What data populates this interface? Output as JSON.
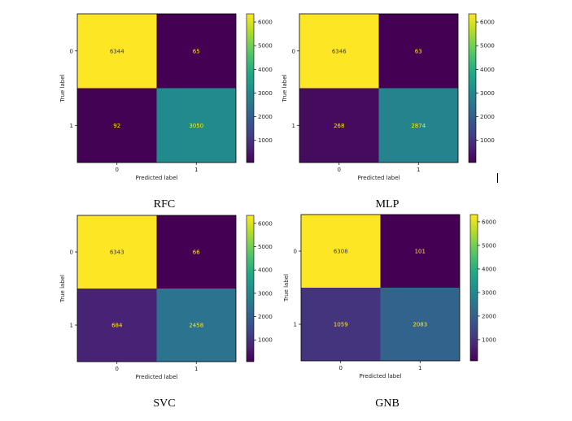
{
  "chart_data": [
    {
      "type": "heatmap",
      "caption": "RFC",
      "xlabel": "Predicted label",
      "ylabel": "True label",
      "x_ticks": [
        "0",
        "1"
      ],
      "y_ticks": [
        "0",
        "1"
      ],
      "matrix": [
        [
          6344,
          65
        ],
        [
          92,
          3050
        ]
      ],
      "colorbar": {
        "colormap": "viridis",
        "range": [
          65,
          6344
        ],
        "ticks": [
          1000,
          2000,
          3000,
          4000,
          5000,
          6000
        ]
      }
    },
    {
      "type": "heatmap",
      "caption": "MLP",
      "xlabel": "Predicted label",
      "ylabel": "True label",
      "x_ticks": [
        "0",
        "1"
      ],
      "y_ticks": [
        "0",
        "1"
      ],
      "matrix": [
        [
          6346,
          63
        ],
        [
          268,
          2874
        ]
      ],
      "colorbar": {
        "colormap": "viridis",
        "range": [
          63,
          6346
        ],
        "ticks": [
          1000,
          2000,
          3000,
          4000,
          5000,
          6000
        ]
      }
    },
    {
      "type": "heatmap",
      "caption": "SVC",
      "xlabel": "Predicted label",
      "ylabel": "True label",
      "x_ticks": [
        "0",
        "1"
      ],
      "y_ticks": [
        "0",
        "1"
      ],
      "matrix": [
        [
          6343,
          66
        ],
        [
          684,
          2458
        ]
      ],
      "colorbar": {
        "colormap": "viridis",
        "range": [
          66,
          6343
        ],
        "ticks": [
          1000,
          2000,
          3000,
          4000,
          5000,
          6000
        ]
      }
    },
    {
      "type": "heatmap",
      "caption": "GNB",
      "xlabel": "Predicted label",
      "ylabel": "True label",
      "x_ticks": [
        "0",
        "1"
      ],
      "y_ticks": [
        "0",
        "1"
      ],
      "matrix": [
        [
          6308,
          101
        ],
        [
          1059,
          2083
        ]
      ],
      "colorbar": {
        "colormap": "viridis",
        "range": [
          101,
          6308
        ],
        "ticks": [
          1000,
          2000,
          3000,
          4000,
          5000,
          6000
        ]
      }
    }
  ]
}
